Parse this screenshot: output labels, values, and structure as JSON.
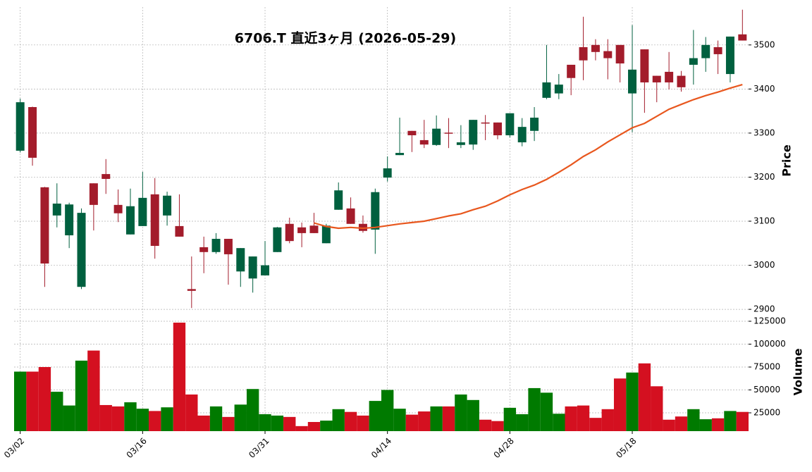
{
  "chart_data": {
    "type": "candlestick",
    "title": "6706.T  直近3ヶ月  (2026-05-29)",
    "categories": [
      "03/02",
      null,
      null,
      null,
      null,
      null,
      null,
      null,
      null,
      null,
      "03/16",
      null,
      null,
      null,
      null,
      null,
      null,
      null,
      null,
      null,
      "03/31",
      null,
      null,
      null,
      null,
      null,
      null,
      null,
      null,
      null,
      "04/14",
      null,
      null,
      null,
      null,
      null,
      null,
      null,
      null,
      null,
      "04/28",
      null,
      null,
      null,
      null,
      null,
      null,
      null,
      null,
      null,
      "05/18",
      null,
      null,
      null,
      null,
      null,
      null,
      null,
      null,
      null
    ],
    "open": [
      3260,
      3359,
      3177,
      3113,
      3068,
      2951,
      3186,
      3207,
      3137,
      3070,
      3089,
      3161,
      3113,
      3089,
      2946,
      3041,
      3030,
      3060,
      2986,
      2970,
      2977,
      3030,
      3094,
      3086,
      3090,
      3050,
      3126,
      3129,
      3094,
      3081,
      3199,
      3250,
      3305,
      3284,
      3273,
      3301,
      3273,
      3274,
      3324,
      3324,
      3295,
      3279,
      3305,
      3380,
      3390,
      3455,
      3495,
      3500,
      3486,
      3500,
      3390,
      3490,
      3430,
      3439,
      3430,
      3455,
      3470,
      3495,
      3434,
      3524
    ],
    "high": [
      3378,
      3360,
      3178,
      3186,
      3142,
      3129,
      3186,
      3241,
      3172,
      3174,
      3212,
      3198,
      3167,
      3161,
      3020,
      3065,
      3073,
      3060,
      3039,
      3020,
      3055,
      3087,
      3108,
      3097,
      3119,
      3094,
      3188,
      3154,
      3113,
      3174,
      3247,
      3335,
      3305,
      3330,
      3340,
      3334,
      3318,
      3330,
      3341,
      3324,
      3345,
      3334,
      3359,
      3500,
      3434,
      3455,
      3564,
      3513,
      3513,
      3500,
      3545,
      3490,
      3430,
      3484,
      3441,
      3534,
      3518,
      3510,
      3519,
      3580
    ],
    "low": [
      3256,
      3226,
      2951,
      3086,
      3039,
      2946,
      3079,
      3162,
      3098,
      3070,
      3089,
      3015,
      3090,
      3065,
      2903,
      2982,
      3026,
      2956,
      2951,
      2938,
      2977,
      3030,
      3050,
      3041,
      3073,
      3050,
      3126,
      3094,
      3074,
      3026,
      3190,
      3250,
      3257,
      3266,
      3271,
      3266,
      3266,
      3262,
      3284,
      3286,
      3290,
      3270,
      3282,
      3377,
      3377,
      3386,
      3420,
      3465,
      3422,
      3415,
      3302,
      3346,
      3370,
      3399,
      3394,
      3410,
      3439,
      3434,
      3415,
      3510
    ],
    "close": [
      3370,
      3244,
      3004,
      3140,
      3138,
      3119,
      3137,
      3196,
      3118,
      3134,
      3153,
      3044,
      3158,
      3065,
      2942,
      3030,
      3060,
      3025,
      3039,
      3020,
      3000,
      3086,
      3055,
      3073,
      3073,
      3090,
      3170,
      3094,
      3078,
      3166,
      3220,
      3255,
      3295,
      3274,
      3310,
      3300,
      3279,
      3330,
      3322,
      3295,
      3345,
      3314,
      3335,
      3415,
      3410,
      3425,
      3465,
      3484,
      3470,
      3458,
      3444,
      3415,
      3415,
      3415,
      3404,
      3470,
      3500,
      3479,
      3519,
      3510
    ],
    "up_color": "#00603f",
    "down_color": "#a31c2b",
    "ylabel": "Price",
    "ylim": [
      2889,
      3586
    ],
    "yticks": [
      2900,
      3000,
      3100,
      3200,
      3300,
      3400,
      3500
    ],
    "grid": true,
    "ma": {
      "color": "#e8571e",
      "values": [
        null,
        null,
        null,
        null,
        null,
        null,
        null,
        null,
        null,
        null,
        null,
        null,
        null,
        null,
        null,
        null,
        null,
        null,
        null,
        null,
        null,
        null,
        null,
        null,
        3096,
        3088,
        3084,
        3086,
        3084,
        3086,
        3090,
        3094,
        3097,
        3100,
        3106,
        3112,
        3117,
        3126,
        3134,
        3146,
        3160,
        3172,
        3182,
        3195,
        3211,
        3228,
        3247,
        3262,
        3280,
        3296,
        3312,
        3322,
        3338,
        3354,
        3365,
        3376,
        3385,
        3393,
        3402,
        3410
      ]
    },
    "volume": {
      "ylabel": "Volume",
      "ylim": [
        5000,
        130400
      ],
      "yticks": [
        25000,
        50000,
        75000,
        100000,
        125000
      ],
      "up_color": "#007a00",
      "down_color": "#d41020",
      "values": [
        70000,
        70000,
        75000,
        48000,
        33000,
        82000,
        93000,
        33500,
        32000,
        36500,
        29500,
        27000,
        31000,
        123500,
        45000,
        22000,
        32000,
        20500,
        34000,
        51000,
        23500,
        22000,
        20500,
        10500,
        15000,
        16500,
        29000,
        26000,
        22000,
        38000,
        50000,
        29500,
        23000,
        26500,
        32000,
        32000,
        45000,
        39000,
        17500,
        16000,
        30500,
        23500,
        52000,
        47000,
        24000,
        32000,
        33000,
        19500,
        29000,
        62500,
        69000,
        79000,
        54000,
        17500,
        21000,
        29000,
        18000,
        19000,
        27000,
        26000
      ]
    }
  }
}
